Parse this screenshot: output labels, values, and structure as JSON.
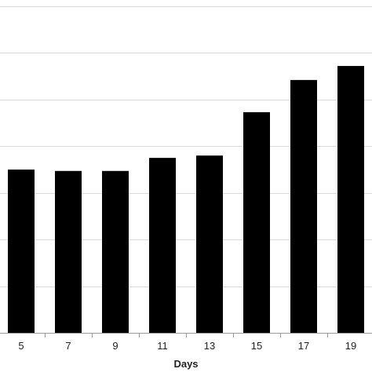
{
  "chart_data": {
    "type": "bar",
    "title": "",
    "xlabel": "Days",
    "ylabel": "",
    "categories": [
      "5",
      "7",
      "9",
      "11",
      "13",
      "15",
      "17",
      "19"
    ],
    "series": [
      {
        "values": [
          3.5,
          3.47,
          3.47,
          3.75,
          3.8,
          4.73,
          5.42,
          5.72
        ]
      }
    ],
    "ylim": [
      0,
      7
    ],
    "grid": true,
    "bar_color": "#000000",
    "grid_color": "#d9d9d9",
    "axis_color": "#999999",
    "legend": "none"
  }
}
